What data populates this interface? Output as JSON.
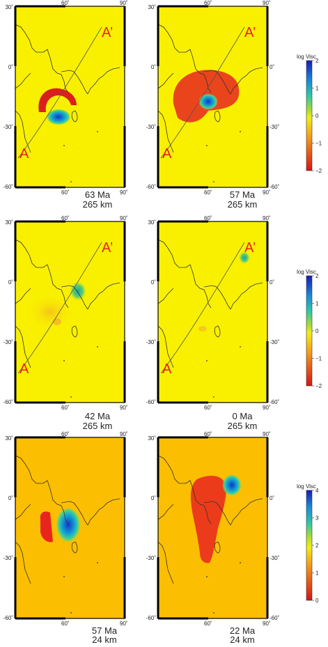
{
  "panels": [
    {
      "id": "p1",
      "age": "63 Ma",
      "depth": "265 km",
      "profile": true,
      "ticks": {
        "top": [
          "60˚",
          "90˚"
        ],
        "left": [
          "30˚",
          "0˚",
          "-30˚",
          "-60˚"
        ],
        "right": []
      }
    },
    {
      "id": "p2",
      "age": "57 Ma",
      "depth": "265 km",
      "profile": true,
      "ticks": {
        "top": [
          "60˚",
          "90˚"
        ],
        "left": [
          "30˚",
          "0˚",
          "-30˚",
          "-60˚"
        ],
        "right": [
          "0˚",
          "-30˚",
          "-60˚"
        ]
      }
    },
    {
      "id": "p3",
      "age": "42 Ma",
      "depth": "265 km",
      "profile": true,
      "ticks": {
        "top": [
          "60˚",
          "90˚"
        ],
        "left": [
          "30˚",
          "0˚",
          "-30˚",
          "-60˚"
        ],
        "right": []
      }
    },
    {
      "id": "p4",
      "age": "0 Ma",
      "depth": "265 km",
      "profile": true,
      "ticks": {
        "top": [
          "60˚",
          "90˚"
        ],
        "left": [
          "30˚",
          "0˚",
          "-30˚",
          "-60˚"
        ],
        "right": [
          "0˚",
          "-30˚",
          "-60˚"
        ]
      }
    },
    {
      "id": "p5",
      "age": "57 Ma",
      "depth": "24 km",
      "profile": false,
      "ticks": {
        "top": [
          "60˚",
          "90˚"
        ],
        "left": [
          "30˚",
          "0˚",
          "-30˚",
          "-60˚"
        ],
        "right": []
      }
    },
    {
      "id": "p6",
      "age": "22 Ma",
      "depth": "24 km",
      "profile": false,
      "ticks": {
        "top": [
          "60˚",
          "90˚"
        ],
        "left": [
          "30˚",
          "0˚",
          "-30˚",
          "-60˚"
        ],
        "right": [
          "0˚",
          "-30˚",
          "-60˚"
        ]
      }
    }
  ],
  "profile_labels": {
    "start": "A",
    "end": "A’"
  },
  "bottom_ticks": [
    "60˚",
    "90˚"
  ],
  "colorbars": [
    {
      "title": "log Visc",
      "ticks": [
        "2",
        "1",
        "0",
        "−1",
        "−2"
      ]
    },
    {
      "title": "log Visc",
      "ticks": [
        "2",
        "1",
        "0",
        "−1",
        "−2"
      ]
    },
    {
      "title": "log Visc",
      "ticks": [
        "4",
        "3",
        "2",
        "1",
        "0"
      ]
    }
  ],
  "colors": {
    "background_rows_1_2": "#f9f000",
    "background_row_3": "#fbbe00",
    "low_viscosity": "#e21e1e",
    "high_viscosity": "#1a48c8",
    "label": "#e8221b"
  }
}
